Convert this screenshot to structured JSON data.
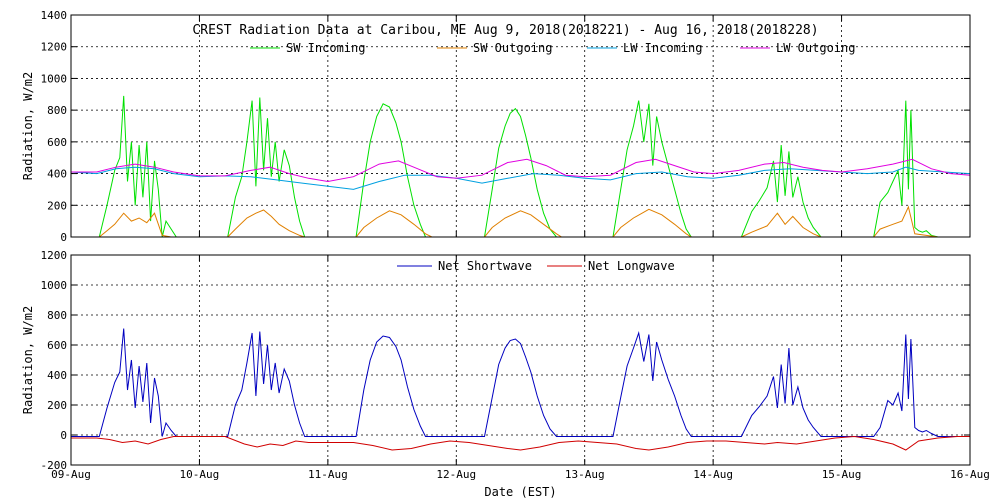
{
  "chart_data": [
    {
      "type": "line",
      "title": "CREST Radiation Data at Caribou, ME   Aug  9, 2018(2018221) - Aug 16, 2018(2018228)",
      "ylabel": "Radiation, W/m2",
      "xlabel": "",
      "ylim": [
        0,
        1400
      ],
      "yticks": [
        0,
        200,
        400,
        600,
        800,
        1000,
        1200,
        1400
      ],
      "xlim": [
        0,
        7
      ],
      "xticks": [
        "09-Aug",
        "10-Aug",
        "11-Aug",
        "12-Aug",
        "13-Aug",
        "14-Aug",
        "15-Aug",
        "16-Aug"
      ],
      "grid": true,
      "legend_placement": "top",
      "series": [
        {
          "name": "SW Incoming",
          "color": "#00e000",
          "x": [
            0.0,
            0.22,
            0.28,
            0.34,
            0.38,
            0.41,
            0.44,
            0.47,
            0.5,
            0.53,
            0.56,
            0.59,
            0.62,
            0.65,
            0.68,
            0.71,
            0.74,
            0.78,
            0.82,
            1.22,
            1.28,
            1.33,
            1.37,
            1.41,
            1.44,
            1.47,
            1.5,
            1.53,
            1.56,
            1.59,
            1.62,
            1.66,
            1.7,
            1.74,
            1.78,
            1.82,
            2.22,
            2.28,
            2.33,
            2.38,
            2.43,
            2.48,
            2.53,
            2.57,
            2.62,
            2.67,
            2.72,
            2.76,
            2.81,
            3.22,
            3.28,
            3.33,
            3.38,
            3.42,
            3.46,
            3.5,
            3.54,
            3.58,
            3.63,
            3.68,
            3.73,
            3.78,
            3.82,
            4.22,
            4.28,
            4.33,
            4.38,
            4.42,
            4.46,
            4.5,
            4.53,
            4.56,
            4.6,
            4.65,
            4.7,
            4.75,
            4.79,
            4.83,
            5.22,
            5.3,
            5.36,
            5.42,
            5.47,
            5.5,
            5.53,
            5.56,
            5.59,
            5.62,
            5.66,
            5.7,
            5.74,
            5.78,
            5.84,
            6.25,
            6.3,
            6.36,
            6.4,
            6.44,
            6.47,
            6.5,
            6.52,
            6.54,
            6.57,
            6.6,
            6.63,
            6.66,
            6.7,
            6.75,
            7.0
          ],
          "values": [
            0,
            0,
            200,
            420,
            500,
            890,
            350,
            600,
            200,
            580,
            250,
            600,
            100,
            480,
            300,
            0,
            100,
            50,
            0,
            0,
            250,
            380,
            600,
            860,
            320,
            880,
            420,
            750,
            380,
            600,
            350,
            550,
            450,
            250,
            100,
            0,
            0,
            350,
            600,
            760,
            840,
            820,
            720,
            600,
            380,
            200,
            80,
            0,
            0,
            0,
            300,
            560,
            700,
            780,
            810,
            760,
            640,
            500,
            300,
            150,
            50,
            0,
            0,
            0,
            300,
            550,
            700,
            860,
            600,
            840,
            450,
            760,
            600,
            450,
            300,
            150,
            50,
            0,
            0,
            160,
            230,
            310,
            480,
            220,
            580,
            260,
            540,
            250,
            380,
            220,
            120,
            60,
            0,
            0,
            220,
            280,
            350,
            420,
            200,
            860,
            300,
            800,
            60,
            40,
            30,
            40,
            10,
            0,
            0
          ]
        },
        {
          "name": "SW Outgoing",
          "color": "#e08000",
          "x": [
            0.0,
            0.22,
            0.28,
            0.34,
            0.41,
            0.47,
            0.53,
            0.59,
            0.65,
            0.71,
            0.78,
            1.22,
            1.28,
            1.37,
            1.44,
            1.5,
            1.56,
            1.62,
            1.7,
            1.78,
            1.82,
            2.22,
            2.28,
            2.38,
            2.48,
            2.57,
            2.67,
            2.76,
            2.81,
            3.22,
            3.28,
            3.38,
            3.5,
            3.58,
            3.68,
            3.78,
            3.82,
            4.22,
            4.28,
            4.38,
            4.5,
            4.6,
            4.7,
            4.79,
            4.83,
            5.22,
            5.3,
            5.42,
            5.5,
            5.56,
            5.62,
            5.7,
            5.78,
            5.84,
            6.25,
            6.3,
            6.4,
            6.47,
            6.52,
            6.57,
            6.66,
            6.75,
            7.0
          ],
          "values": [
            0,
            0,
            40,
            80,
            150,
            100,
            120,
            90,
            150,
            10,
            0,
            0,
            50,
            120,
            150,
            170,
            130,
            80,
            40,
            10,
            0,
            0,
            60,
            120,
            165,
            140,
            80,
            20,
            0,
            0,
            60,
            120,
            165,
            140,
            80,
            20,
            0,
            0,
            60,
            120,
            175,
            140,
            80,
            20,
            0,
            0,
            30,
            70,
            150,
            80,
            130,
            60,
            20,
            0,
            0,
            50,
            80,
            100,
            190,
            20,
            10,
            0,
            0
          ]
        },
        {
          "name": "LW Incoming",
          "color": "#00a0e0",
          "x": [
            0.0,
            0.2,
            0.35,
            0.5,
            0.65,
            0.8,
            1.0,
            1.2,
            1.4,
            1.6,
            1.8,
            2.0,
            2.2,
            2.4,
            2.6,
            2.8,
            3.0,
            3.2,
            3.4,
            3.6,
            3.8,
            4.0,
            4.2,
            4.4,
            4.6,
            4.8,
            5.0,
            5.2,
            5.4,
            5.6,
            5.8,
            6.0,
            6.2,
            6.4,
            6.5,
            6.6,
            6.8,
            7.0
          ],
          "values": [
            410,
            400,
            430,
            440,
            430,
            400,
            380,
            385,
            380,
            360,
            340,
            320,
            300,
            350,
            390,
            390,
            370,
            340,
            370,
            400,
            390,
            370,
            360,
            400,
            410,
            380,
            370,
            390,
            420,
            430,
            420,
            410,
            400,
            410,
            440,
            420,
            410,
            400
          ]
        },
        {
          "name": "LW Outgoing",
          "color": "#e000e0",
          "x": [
            0.0,
            0.2,
            0.35,
            0.5,
            0.65,
            0.8,
            1.0,
            1.2,
            1.4,
            1.55,
            1.7,
            1.85,
            2.0,
            2.2,
            2.4,
            2.55,
            2.7,
            2.85,
            3.0,
            3.2,
            3.4,
            3.55,
            3.7,
            3.85,
            4.0,
            4.2,
            4.4,
            4.55,
            4.7,
            4.85,
            5.0,
            5.2,
            5.4,
            5.55,
            5.7,
            5.85,
            6.0,
            6.2,
            6.4,
            6.55,
            6.7,
            6.85,
            7.0
          ],
          "values": [
            410,
            410,
            440,
            460,
            440,
            410,
            385,
            385,
            420,
            440,
            400,
            370,
            350,
            380,
            460,
            480,
            430,
            380,
            370,
            390,
            470,
            490,
            450,
            390,
            380,
            390,
            470,
            490,
            450,
            410,
            400,
            420,
            460,
            470,
            440,
            420,
            410,
            430,
            460,
            490,
            430,
            400,
            390
          ]
        }
      ]
    },
    {
      "type": "line",
      "title": "",
      "ylabel": "Radiation, W/m2",
      "xlabel": "Date (EST)",
      "ylim": [
        -200,
        1200
      ],
      "yticks": [
        -200,
        0,
        200,
        400,
        600,
        800,
        1000,
        1200
      ],
      "xlim": [
        0,
        7
      ],
      "xticks": [
        "09-Aug",
        "10-Aug",
        "11-Aug",
        "12-Aug",
        "13-Aug",
        "14-Aug",
        "15-Aug",
        "16-Aug"
      ],
      "grid": true,
      "legend_placement": "top",
      "series": [
        {
          "name": "Net Shortwave",
          "color": "#0000c0",
          "x": [
            0.0,
            0.22,
            0.28,
            0.34,
            0.38,
            0.41,
            0.44,
            0.47,
            0.5,
            0.53,
            0.56,
            0.59,
            0.62,
            0.65,
            0.68,
            0.71,
            0.74,
            0.78,
            0.82,
            1.22,
            1.28,
            1.33,
            1.37,
            1.41,
            1.44,
            1.47,
            1.5,
            1.53,
            1.56,
            1.59,
            1.62,
            1.66,
            1.7,
            1.74,
            1.78,
            1.82,
            2.22,
            2.28,
            2.33,
            2.38,
            2.43,
            2.48,
            2.53,
            2.57,
            2.62,
            2.67,
            2.72,
            2.76,
            2.81,
            3.22,
            3.28,
            3.33,
            3.38,
            3.42,
            3.46,
            3.5,
            3.54,
            3.58,
            3.63,
            3.68,
            3.73,
            3.78,
            3.82,
            4.22,
            4.28,
            4.33,
            4.38,
            4.42,
            4.46,
            4.5,
            4.53,
            4.56,
            4.6,
            4.65,
            4.7,
            4.75,
            4.79,
            4.83,
            5.22,
            5.3,
            5.36,
            5.42,
            5.47,
            5.5,
            5.53,
            5.56,
            5.59,
            5.62,
            5.66,
            5.7,
            5.74,
            5.78,
            5.84,
            6.25,
            6.3,
            6.36,
            6.4,
            6.44,
            6.47,
            6.5,
            6.52,
            6.54,
            6.57,
            6.6,
            6.63,
            6.66,
            6.7,
            6.75,
            7.0
          ],
          "values": [
            -10,
            -10,
            180,
            350,
            420,
            710,
            300,
            500,
            180,
            460,
            220,
            480,
            80,
            380,
            260,
            -10,
            80,
            30,
            -10,
            -10,
            200,
            300,
            480,
            680,
            260,
            690,
            340,
            600,
            300,
            480,
            280,
            440,
            360,
            200,
            80,
            -10,
            -10,
            300,
            500,
            620,
            660,
            650,
            590,
            500,
            320,
            170,
            60,
            -10,
            -10,
            -10,
            250,
            470,
            580,
            630,
            640,
            610,
            520,
            420,
            260,
            130,
            40,
            -10,
            -10,
            -10,
            250,
            460,
            580,
            680,
            490,
            670,
            360,
            620,
            500,
            370,
            260,
            130,
            40,
            -10,
            -10,
            130,
            190,
            260,
            390,
            180,
            470,
            210,
            580,
            200,
            320,
            180,
            100,
            50,
            -10,
            -10,
            50,
            230,
            200,
            280,
            160,
            670,
            240,
            640,
            50,
            30,
            20,
            30,
            10,
            -10,
            -10
          ]
        },
        {
          "name": "Net Longwave",
          "color": "#d00000",
          "x": [
            0.0,
            0.2,
            0.3,
            0.4,
            0.5,
            0.6,
            0.7,
            0.8,
            1.0,
            1.2,
            1.35,
            1.45,
            1.55,
            1.65,
            1.75,
            1.85,
            2.0,
            2.2,
            2.35,
            2.5,
            2.65,
            2.8,
            2.95,
            3.1,
            3.25,
            3.4,
            3.5,
            3.65,
            3.8,
            3.95,
            4.1,
            4.25,
            4.4,
            4.5,
            4.65,
            4.8,
            4.95,
            5.1,
            5.25,
            5.4,
            5.5,
            5.65,
            5.8,
            5.95,
            6.1,
            6.25,
            6.4,
            6.5,
            6.6,
            6.75,
            6.9,
            7.0
          ],
          "values": [
            -20,
            -20,
            -30,
            -50,
            -40,
            -60,
            -30,
            -10,
            -10,
            -10,
            -60,
            -80,
            -60,
            -70,
            -40,
            -50,
            -50,
            -50,
            -70,
            -100,
            -90,
            -60,
            -40,
            -50,
            -70,
            -90,
            -100,
            -80,
            -50,
            -40,
            -50,
            -60,
            -90,
            -100,
            -80,
            -50,
            -40,
            -40,
            -50,
            -60,
            -50,
            -60,
            -40,
            -20,
            -10,
            -30,
            -60,
            -100,
            -40,
            -20,
            -10,
            -10
          ]
        }
      ]
    }
  ]
}
